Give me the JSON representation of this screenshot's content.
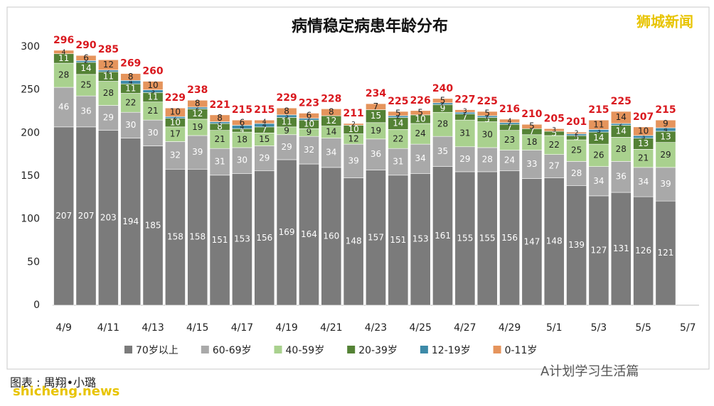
{
  "chart_data": {
    "type": "stacked-bar",
    "title": "病情稳定病患年龄分布",
    "categories": [
      "4/9",
      null,
      "4/11",
      null,
      "4/13",
      null,
      "4/15",
      null,
      "4/17",
      null,
      "4/19",
      null,
      "4/21",
      null,
      "4/23",
      null,
      "4/25",
      null,
      "4/27",
      null,
      "4/29",
      null,
      "5/1",
      null,
      "5/3",
      null,
      "5/5",
      null,
      "5/7"
    ],
    "series": [
      {
        "name": "70岁以上",
        "color": "#7b7b7b",
        "values": [
          207,
          207,
          203,
          194,
          185,
          158,
          158,
          151,
          153,
          156,
          169,
          164,
          160,
          148,
          157,
          151,
          153,
          161,
          155,
          155,
          156,
          147,
          148,
          139,
          127,
          131,
          126,
          121,
          null
        ]
      },
      {
        "name": "60-69岁",
        "color": "#a9a9a9",
        "values": [
          46,
          36,
          29,
          30,
          30,
          32,
          39,
          31,
          30,
          29,
          29,
          32,
          34,
          39,
          36,
          31,
          34,
          35,
          29,
          28,
          24,
          33,
          27,
          28,
          34,
          36,
          34,
          39,
          null
        ]
      },
      {
        "name": "40-59岁",
        "color": "#a9d18e",
        "values": [
          28,
          25,
          28,
          22,
          21,
          17,
          19,
          21,
          18,
          15,
          9,
          9,
          14,
          12,
          19,
          22,
          24,
          28,
          31,
          30,
          23,
          18,
          22,
          25,
          26,
          28,
          21,
          29,
          null
        ]
      },
      {
        "name": "20-39岁",
        "color": "#548235",
        "values": [
          11,
          14,
          11,
          11,
          11,
          10,
          12,
          8,
          4,
          7,
          11,
          10,
          12,
          10,
          15,
          14,
          10,
          9,
          7,
          5,
          7,
          7,
          5,
          5,
          14,
          14,
          13,
          13,
          null
        ]
      },
      {
        "name": "12-19岁",
        "color": "#3d8aa8",
        "values": [
          0,
          2,
          2,
          4,
          3,
          2,
          2,
          2,
          4,
          4,
          3,
          2,
          0,
          0,
          0,
          2,
          0,
          2,
          2,
          2,
          2,
          0,
          0,
          2,
          3,
          2,
          3,
          4,
          null
        ]
      },
      {
        "name": "0-11岁",
        "color": "#e5945c",
        "values": [
          4,
          6,
          12,
          8,
          10,
          10,
          8,
          8,
          6,
          4,
          8,
          6,
          8,
          2,
          7,
          5,
          5,
          5,
          3,
          5,
          4,
          5,
          3,
          2,
          11,
          14,
          10,
          9,
          null
        ]
      }
    ],
    "totals": [
      296,
      290,
      285,
      269,
      260,
      229,
      238,
      221,
      215,
      215,
      229,
      223,
      228,
      211,
      234,
      225,
      226,
      240,
      227,
      225,
      216,
      210,
      205,
      201,
      215,
      225,
      207,
      215,
      null
    ],
    "total_color": "#d9181e",
    "ylim": [
      0,
      300
    ],
    "yticks": [
      0,
      50,
      100,
      150,
      200,
      250,
      300
    ],
    "legend": "bottom",
    "annotations": [
      "狮城新闻",
      "图表 : 禺翔•小璐",
      "shicheng.news",
      "A计划学习生活篇"
    ]
  }
}
